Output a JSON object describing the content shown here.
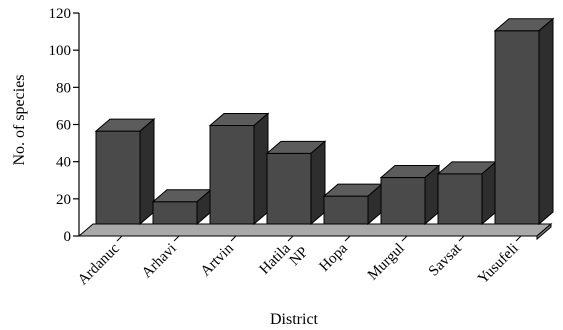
{
  "chart_data": {
    "type": "bar",
    "style": "3d",
    "categories": [
      "Ardanuc",
      "Arhavi",
      "Artvin",
      "Hatila NP",
      "Hopa",
      "Murgul",
      "Savsat",
      "Yusufeli"
    ],
    "category_lines": [
      [
        "Ardanuc"
      ],
      [
        "Arhavi"
      ],
      [
        "Artvin"
      ],
      [
        "Hatila",
        "NP"
      ],
      [
        "Hopa"
      ],
      [
        "Murgul"
      ],
      [
        "Savsat"
      ],
      [
        "Yusufeli"
      ]
    ],
    "values": [
      50,
      12,
      53,
      38,
      15,
      25,
      27,
      104
    ],
    "xlabel": "District",
    "ylabel": "No. of species",
    "ylim": [
      0,
      120
    ],
    "yticks": [
      0,
      20,
      40,
      60,
      80,
      100,
      120
    ],
    "grid": false,
    "legend": "none",
    "bar_color": "#4a4a4a",
    "floor_color": "#a9a9a9"
  }
}
